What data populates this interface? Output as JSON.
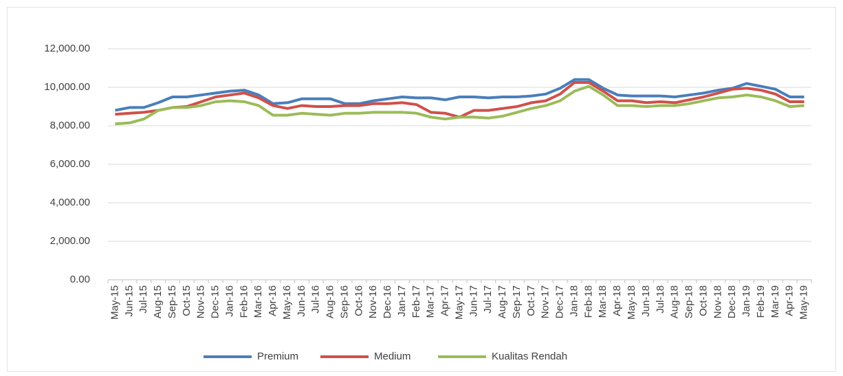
{
  "chart_data": {
    "type": "line",
    "categories": [
      "May-15",
      "Jun-15",
      "Jul-15",
      "Aug-15",
      "Sep-15",
      "Oct-15",
      "Nov-15",
      "Dec-15",
      "Jan-16",
      "Feb-16",
      "Mar-16",
      "Apr-16",
      "May-16",
      "Jun-16",
      "Jul-16",
      "Aug-16",
      "Sep-16",
      "Oct-16",
      "Nov-16",
      "Dec-16",
      "Jan-17",
      "Feb-17",
      "Mar-17",
      "Apr-17",
      "May-17",
      "Jun-17",
      "Jul-17",
      "Aug-17",
      "Sep-17",
      "Oct-17",
      "Nov-17",
      "Dec-17",
      "Jan-18",
      "Feb-18",
      "Mar-18",
      "Apr-18",
      "May-18",
      "Jun-18",
      "Jul-18",
      "Aug-18",
      "Sep-18",
      "Oct-18",
      "Nov-18",
      "Dec-18",
      "Jan-19",
      "Feb-19",
      "Mar-19",
      "Apr-19",
      "May-19"
    ],
    "series": [
      {
        "name": "Premium",
        "color": "#4a7ebb",
        "values": [
          8800,
          8950,
          8950,
          9200,
          9500,
          9500,
          9600,
          9700,
          9800,
          9850,
          9600,
          9150,
          9200,
          9400,
          9400,
          9400,
          9150,
          9150,
          9300,
          9400,
          9500,
          9450,
          9450,
          9350,
          9500,
          9500,
          9450,
          9500,
          9500,
          9550,
          9650,
          9950,
          10400,
          10400,
          9950,
          9600,
          9550,
          9550,
          9550,
          9500,
          9600,
          9700,
          9850,
          9950,
          10200,
          10050,
          9900,
          9500,
          9500
        ]
      },
      {
        "name": "Medium",
        "color": "#cf504b",
        "values": [
          8600,
          8650,
          8700,
          8800,
          8950,
          9000,
          9250,
          9500,
          9600,
          9700,
          9450,
          9050,
          8900,
          9050,
          9000,
          9000,
          9050,
          9050,
          9150,
          9150,
          9200,
          9100,
          8700,
          8650,
          8450,
          8800,
          8800,
          8900,
          9000,
          9200,
          9300,
          9650,
          10250,
          10250,
          9800,
          9300,
          9300,
          9200,
          9250,
          9200,
          9350,
          9500,
          9700,
          9900,
          9950,
          9850,
          9650,
          9250,
          9250
        ]
      },
      {
        "name": "Kualitas Rendah",
        "color": "#9bbb59",
        "values": [
          8100,
          8150,
          8350,
          8800,
          8950,
          8950,
          9050,
          9250,
          9300,
          9250,
          9050,
          8550,
          8550,
          8650,
          8600,
          8550,
          8650,
          8650,
          8700,
          8700,
          8700,
          8650,
          8450,
          8350,
          8450,
          8450,
          8400,
          8500,
          8700,
          8900,
          9050,
          9300,
          9800,
          10050,
          9600,
          9050,
          9050,
          9000,
          9050,
          9050,
          9150,
          9300,
          9450,
          9500,
          9600,
          9500,
          9300,
          9000,
          9050
        ]
      }
    ],
    "ylim": [
      0,
      12000
    ],
    "yticks": [
      {
        "value": 0,
        "label": "0.00"
      },
      {
        "value": 2000,
        "label": "2,000.00"
      },
      {
        "value": 4000,
        "label": "4,000.00"
      },
      {
        "value": 6000,
        "label": "6,000.00"
      },
      {
        "value": 8000,
        "label": "8,000.00"
      },
      {
        "value": 10000,
        "label": "10,000.00"
      },
      {
        "value": 12000,
        "label": "12,000.00"
      }
    ],
    "grid": true,
    "legend": "bottom"
  }
}
